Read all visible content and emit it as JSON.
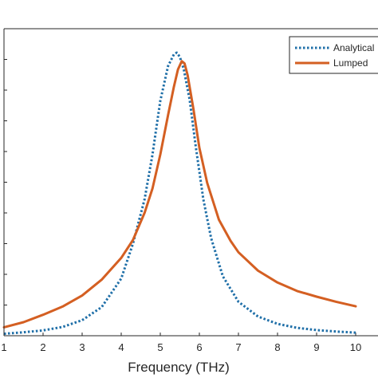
{
  "chart_data": {
    "type": "line",
    "title": "",
    "xlabel": "Frequency (THz)",
    "ylabel": "",
    "xlim": [
      1,
      10.1
    ],
    "ylim": [
      0,
      1
    ],
    "x_ticks": [
      "1",
      "2",
      "3",
      "4",
      "5",
      "6",
      "7",
      "8",
      "9",
      "10"
    ],
    "grid": false,
    "legend_position": "top-right",
    "series": [
      {
        "name": "Analytical",
        "color": "#1f6fa8",
        "style": "dotted",
        "x": [
          1,
          1.5,
          2,
          2.5,
          3,
          3.5,
          4,
          4.3,
          4.6,
          4.8,
          5.0,
          5.2,
          5.35,
          5.42,
          5.5,
          5.6,
          5.75,
          5.9,
          6.1,
          6.3,
          6.6,
          7.0,
          7.5,
          8.0,
          8.5,
          9.0,
          9.5,
          10.0
        ],
        "y": [
          0.007,
          0.012,
          0.019,
          0.031,
          0.055,
          0.101,
          0.202,
          0.325,
          0.483,
          0.64,
          0.83,
          0.953,
          0.994,
          1.0,
          0.985,
          0.942,
          0.834,
          0.676,
          0.483,
          0.345,
          0.21,
          0.12,
          0.068,
          0.042,
          0.028,
          0.02,
          0.015,
          0.011
        ]
      },
      {
        "name": "Lumped",
        "color": "#d45f22",
        "style": "solid",
        "x": [
          1,
          1.5,
          2,
          2.5,
          3,
          3.5,
          4,
          4.3,
          4.6,
          4.8,
          5.0,
          5.2,
          5.35,
          5.45,
          5.55,
          5.62,
          5.7,
          5.85,
          6.0,
          6.2,
          6.5,
          6.8,
          7.0,
          7.5,
          8.0,
          8.5,
          9.0,
          9.5,
          10.0
        ],
        "y": [
          0.03,
          0.048,
          0.074,
          0.103,
          0.142,
          0.198,
          0.275,
          0.338,
          0.435,
          0.52,
          0.64,
          0.78,
          0.88,
          0.94,
          0.97,
          0.962,
          0.92,
          0.8,
          0.664,
          0.54,
          0.41,
          0.335,
          0.295,
          0.23,
          0.188,
          0.158,
          0.138,
          0.12,
          0.104
        ]
      }
    ]
  }
}
